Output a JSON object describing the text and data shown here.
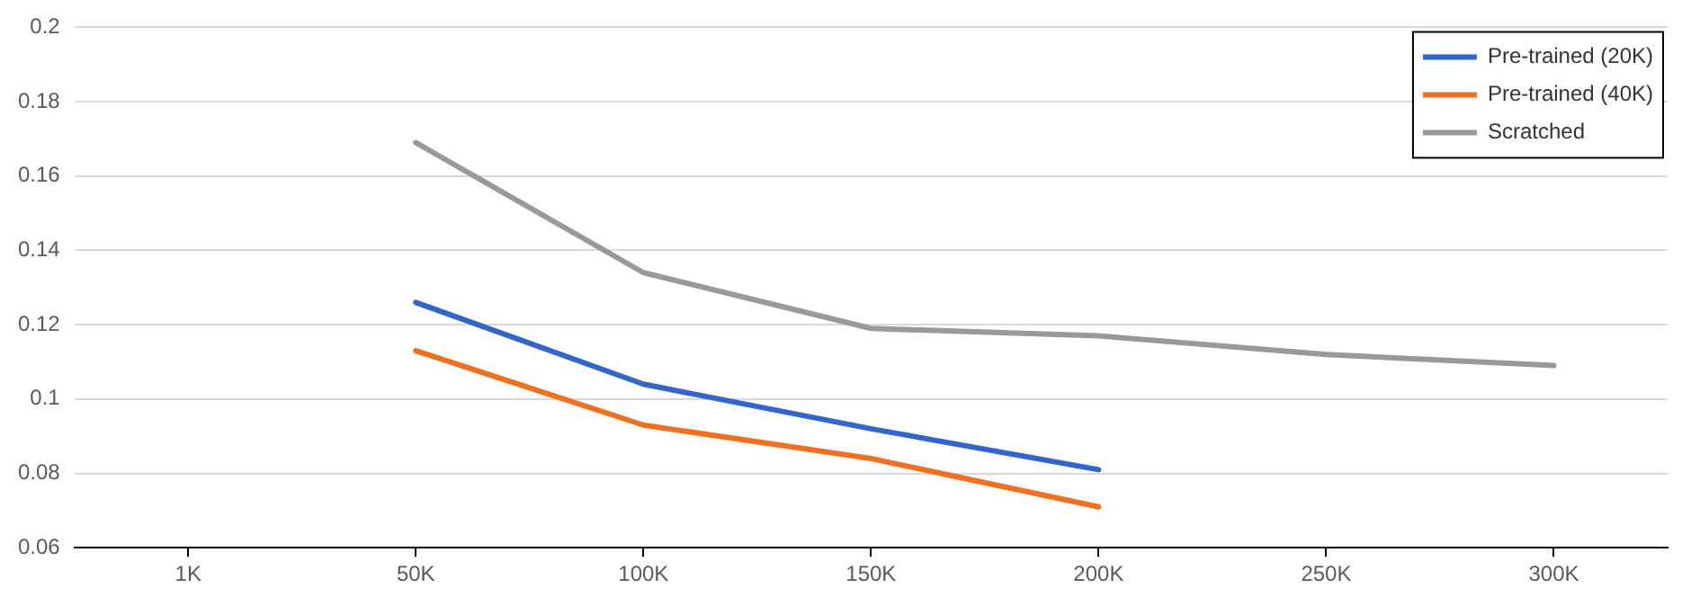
{
  "chart_data": {
    "type": "line",
    "categories": [
      "1K",
      "50K",
      "100K",
      "150K",
      "200K",
      "250K",
      "300K"
    ],
    "series": [
      {
        "name": "Pre-trained (20K)",
        "color": "#3366cc",
        "values": [
          null,
          0.126,
          0.104,
          0.092,
          0.081,
          null,
          null
        ]
      },
      {
        "name": "Pre-trained (40K)",
        "color": "#f07020",
        "values": [
          null,
          0.113,
          0.093,
          0.084,
          0.071,
          null,
          null
        ]
      },
      {
        "name": "Scratched",
        "color": "#999999",
        "values": [
          null,
          0.169,
          0.134,
          0.119,
          0.117,
          0.112,
          0.109
        ]
      }
    ],
    "ylim": [
      0.06,
      0.2
    ],
    "yticks": [
      0.06,
      0.08,
      0.1,
      0.12,
      0.14,
      0.16,
      0.18,
      0.2
    ],
    "grid": "y",
    "legend": "top right",
    "marker": "none",
    "line_style": "solid"
  }
}
